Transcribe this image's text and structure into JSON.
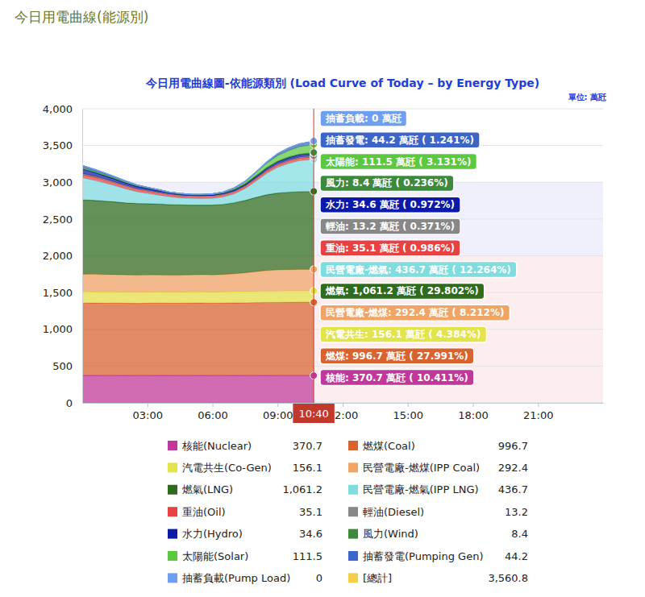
{
  "page_title": "今日用電曲線(能源別)",
  "chart_data": {
    "type": "area",
    "stacked": true,
    "grid": true,
    "legend": "bottom",
    "title": "今日用電曲線圖-依能源類別 (Load Curve of Today – by Energy Type)",
    "unit_label": "單位: 萬瓩",
    "x": [
      0,
      30,
      60,
      90,
      120,
      150,
      180,
      210,
      240,
      270,
      300,
      330,
      360,
      390,
      420,
      450,
      480,
      510,
      540,
      570,
      600,
      630,
      640
    ],
    "xlim": [
      0,
      1440
    ],
    "xticks": [
      {
        "value": 180,
        "label": "03:00"
      },
      {
        "value": 360,
        "label": "06:00"
      },
      {
        "value": 540,
        "label": "09:00"
      },
      {
        "value": 720,
        "label": "12:00"
      },
      {
        "value": 900,
        "label": "15:00"
      },
      {
        "value": 1080,
        "label": "18:00"
      },
      {
        "value": 1260,
        "label": "21:00"
      }
    ],
    "ylim": [
      0,
      4000
    ],
    "yticks": [
      0,
      500,
      {
        "value": 1000,
        "label": "1,000"
      },
      {
        "value": 1500,
        "label": "1,500"
      },
      {
        "value": 2000,
        "label": "2,000"
      },
      {
        "value": 2500,
        "label": "2,500"
      },
      {
        "value": 3000,
        "label": "3,000"
      },
      {
        "value": 3500,
        "label": "3,500"
      },
      {
        "value": 4000,
        "label": "4,000"
      }
    ],
    "bands": [
      {
        "from": 2000,
        "to": 3000,
        "color": "#eff0fb"
      },
      {
        "from": 0,
        "to": 2000,
        "color": "#fcedef"
      }
    ],
    "current_time": {
      "x": 640,
      "label": "10:40"
    },
    "series": [
      {
        "name": "核能(Nuclear)",
        "color": "#c0399a",
        "legend_label": "370.7",
        "tooltip": "核能: 370.7 萬瓩 ( 10.411%)",
        "values": [
          372,
          372,
          371,
          371,
          372,
          371,
          371,
          372,
          372,
          371,
          371,
          372,
          371,
          371,
          372,
          371,
          371,
          372,
          371,
          371,
          371,
          371,
          370.7
        ]
      },
      {
        "name": "燃煤(Coal)",
        "color": "#d8632f",
        "legend_label": "996.7",
        "tooltip": "燃煤: 996.7 萬瓩 ( 27.991%)",
        "values": [
          985,
          986,
          984,
          985,
          983,
          982,
          984,
          985,
          983,
          984,
          985,
          986,
          984,
          985,
          987,
          989,
          991,
          993,
          994,
          995,
          996,
          996,
          996.7
        ]
      },
      {
        "name": "汽電共生(Co-Gen)",
        "color": "#e3e34a",
        "legend_label": "156.1",
        "tooltip": "汽電共生: 156.1 萬瓩 ( 4.384%)",
        "values": [
          152,
          152,
          151,
          151,
          150,
          150,
          150,
          150,
          149,
          149,
          150,
          150,
          150,
          151,
          152,
          153,
          154,
          155,
          155,
          156,
          156,
          156,
          156.1
        ]
      },
      {
        "name": "民營電廠-燃煤(IPP Coal)",
        "color": "#f0a565",
        "legend_label": "292.4",
        "tooltip": "民營電廠-燃煤: 292.4 萬瓩 ( 8.212%)",
        "values": [
          240,
          240,
          238,
          236,
          235,
          234,
          234,
          233,
          233,
          233,
          234,
          234,
          235,
          238,
          245,
          255,
          268,
          280,
          287,
          290,
          291,
          292,
          292.4
        ]
      },
      {
        "name": "燃氣(LNG)",
        "color": "#2e6b1c",
        "legend_label": "1,061.2",
        "tooltip": "燃氣: 1,061.2 萬瓩 ( 29.802%)",
        "values": [
          1010,
          1005,
          1000,
          990,
          980,
          975,
          970,
          965,
          960,
          955,
          950,
          948,
          950,
          955,
          965,
          985,
          1010,
          1030,
          1045,
          1052,
          1058,
          1060,
          1061.2
        ]
      },
      {
        "name": "民營電廠-燃氣(IPP LNG)",
        "color": "#7fdde0",
        "legend_label": "436.7",
        "tooltip": "民營電廠-燃氣: 436.7 萬瓩 ( 12.264%)",
        "values": [
          300,
          275,
          250,
          220,
          190,
          160,
          140,
          120,
          105,
          95,
          90,
          88,
          90,
          100,
          120,
          160,
          220,
          290,
          350,
          390,
          420,
          432,
          436.7
        ]
      },
      {
        "name": "重油(Oil)",
        "color": "#e84141",
        "legend_label": "35.1",
        "tooltip": "重油: 35.1 萬瓩 ( 0.986%)",
        "values": [
          45,
          44,
          42,
          40,
          38,
          36,
          35,
          34,
          33,
          32,
          32,
          32,
          32,
          32,
          32,
          33,
          34,
          34,
          35,
          35,
          35,
          35,
          35.1
        ]
      },
      {
        "name": "輕油(Diesel)",
        "color": "#888888",
        "legend_label": "13.2",
        "tooltip": "輕油: 13.2 萬瓩 ( 0.371%)",
        "values": [
          15,
          14,
          12,
          10,
          8,
          7,
          6,
          6,
          5,
          5,
          5,
          5,
          5,
          5,
          5,
          6,
          8,
          10,
          12,
          13,
          13,
          13,
          13.2
        ]
      },
      {
        "name": "水力(Hydro)",
        "color": "#0b1aa8",
        "legend_label": "34.6",
        "tooltip": "水力: 34.6 萬瓩 ( 0.972%)",
        "values": [
          60,
          50,
          45,
          40,
          35,
          30,
          25,
          20,
          15,
          10,
          8,
          8,
          10,
          12,
          15,
          18,
          22,
          26,
          30,
          32,
          34,
          35,
          34.6
        ]
      },
      {
        "name": "風力(Wind)",
        "color": "#3d8a3d",
        "legend_label": "8.4",
        "tooltip": "風力: 8.4 萬瓩 ( 0.236%)",
        "values": [
          20,
          19,
          18,
          18,
          17,
          16,
          15,
          14,
          13,
          13,
          12,
          12,
          12,
          11,
          11,
          10,
          10,
          9,
          9,
          9,
          9,
          8,
          8.4
        ]
      },
      {
        "name": "太陽能(Solar)",
        "color": "#5cc83f",
        "legend_label": "111.5",
        "tooltip": "太陽能: 111.5 萬瓩 ( 3.131%)",
        "values": [
          0,
          0,
          0,
          0,
          0,
          0,
          0,
          0,
          0,
          0,
          0,
          0,
          2,
          8,
          18,
          30,
          45,
          60,
          75,
          88,
          100,
          108,
          111.5
        ]
      },
      {
        "name": "抽蓄發電(Pumping Gen)",
        "color": "#3d64c8",
        "legend_label": "44.2",
        "tooltip": "抽蓄發電: 44.2 萬瓩 ( 1.241%)",
        "values": [
          30,
          25,
          20,
          15,
          10,
          5,
          0,
          0,
          0,
          0,
          0,
          0,
          0,
          0,
          0,
          0,
          5,
          15,
          25,
          35,
          40,
          43,
          44.2
        ]
      },
      {
        "name": "抽蓄負載(Pump Load)",
        "color": "#6f9ff0",
        "legend_label": "0",
        "tooltip": "抽蓄負載: 0 萬瓩",
        "values": [
          0,
          0,
          0,
          0,
          0,
          0,
          0,
          0,
          0,
          0,
          0,
          0,
          0,
          0,
          0,
          0,
          0,
          0,
          0,
          0,
          0,
          0,
          0
        ]
      }
    ],
    "total": {
      "name": "[總計]",
      "label": "3,560.8",
      "color": "#f2cf4a"
    }
  }
}
